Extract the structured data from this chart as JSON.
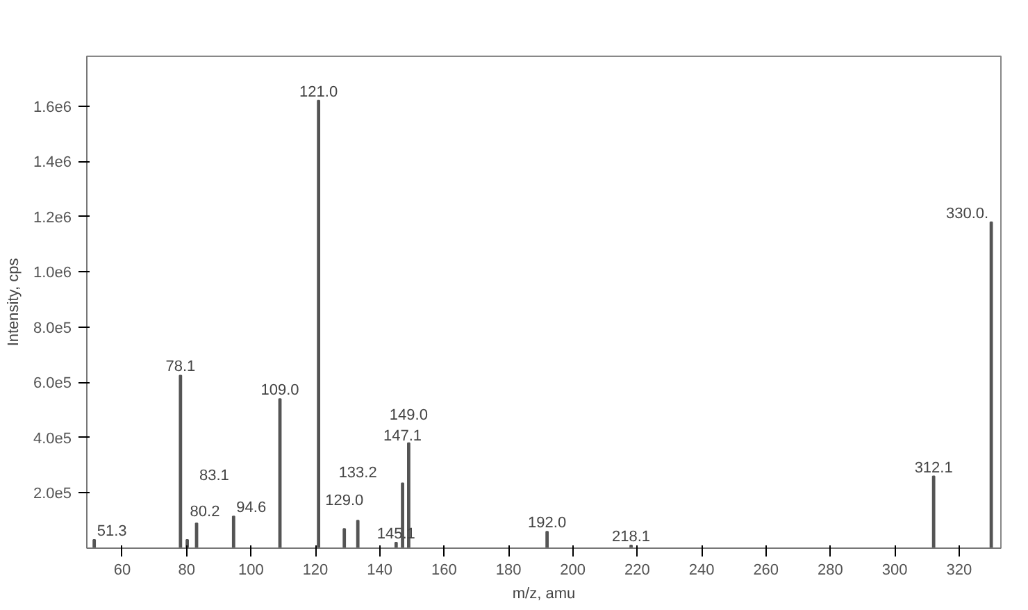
{
  "chart_data": {
    "type": "bar",
    "xlabel": "m/z, amu",
    "ylabel": "Intensity, cps",
    "x": [
      51.3,
      78.1,
      80.2,
      83.1,
      94.6,
      109.0,
      121.0,
      129.0,
      133.2,
      145.1,
      147.1,
      149.0,
      192.0,
      218.1,
      312.1,
      330.0
    ],
    "values": [
      30000,
      625000,
      30000,
      90000,
      115000,
      540000,
      1620000,
      70000,
      100000,
      20000,
      235000,
      380000,
      60000,
      10000,
      260000,
      1180000
    ],
    "annotations": [
      {
        "text": "51.3",
        "x": 51.3,
        "y": 30000
      },
      {
        "text": "78.1",
        "x": 78.1,
        "y": 625000
      },
      {
        "text": "80.2",
        "x": 80.2,
        "y": 30000
      },
      {
        "text": "83.1",
        "x": 83.1,
        "y": 90000
      },
      {
        "text": "94.6",
        "x": 94.6,
        "y": 115000
      },
      {
        "text": "109.0",
        "x": 109.0,
        "y": 540000
      },
      {
        "text": "121.0",
        "x": 121.0,
        "y": 1620000
      },
      {
        "text": "129.0",
        "x": 129.0,
        "y": 70000
      },
      {
        "text": "133.2",
        "x": 133.2,
        "y": 100000
      },
      {
        "text": "145.1",
        "x": 145.1,
        "y": 20000
      },
      {
        "text": "147.1",
        "x": 147.1,
        "y": 235000
      },
      {
        "text": "149.0",
        "x": 149.0,
        "y": 380000
      },
      {
        "text": "192.0",
        "x": 192.0,
        "y": 60000
      },
      {
        "text": "218.1",
        "x": 218.1,
        "y": 10000
      },
      {
        "text": "312.1",
        "x": 312.1,
        "y": 260000
      },
      {
        "text": "330.0.",
        "x": 330.0,
        "y": 1180000
      }
    ],
    "color": "#555555",
    "xlim": [
      49,
      333
    ],
    "xticks": [
      60,
      80,
      100,
      120,
      140,
      160,
      180,
      200,
      220,
      240,
      260,
      280,
      300,
      320
    ],
    "ylim": [
      0,
      1780000
    ],
    "yticks": [
      {
        "value": 200000,
        "label": "2.0e5"
      },
      {
        "value": 400000,
        "label": "4.0e5"
      },
      {
        "value": 600000,
        "label": "6.0e5"
      },
      {
        "value": 800000,
        "label": "8.0e5"
      },
      {
        "value": 1000000,
        "label": "1.0e6"
      },
      {
        "value": 1200000,
        "label": "1.2e6"
      },
      {
        "value": 1400000,
        "label": "1.4e6"
      },
      {
        "value": 1600000,
        "label": "1.6e6"
      }
    ],
    "grid": false
  }
}
